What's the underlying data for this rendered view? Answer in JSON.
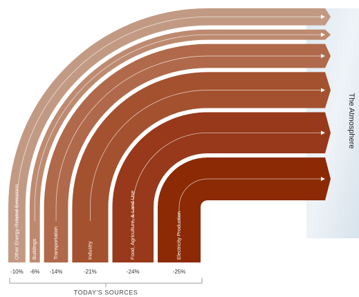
{
  "chart_data": {
    "type": "flow",
    "categories": [
      "Other Energy-Related Emissions",
      "Buildings",
      "Transportation",
      "Industry",
      "Food, Agriculture, & Land Use",
      "Electricity Production"
    ],
    "values": [
      -10,
      -6,
      -14,
      -21,
      -24,
      -25
    ],
    "value_labels": [
      "-10%",
      "-6%",
      "-14%",
      "-21%",
      "-24%",
      "-25%"
    ],
    "colors": [
      "#c29a84",
      "#bd8a70",
      "#b0694a",
      "#a4512f",
      "#97391a",
      "#8c2a06"
    ],
    "x_label": "TODAY'S SOURCES",
    "target_label": "The Atmosphere"
  }
}
